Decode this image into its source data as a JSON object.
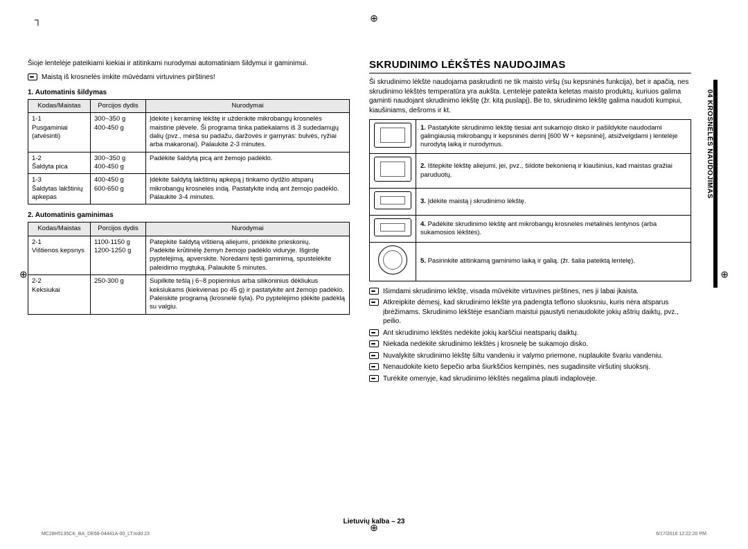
{
  "reg": "⊕",
  "left": {
    "intro": "Šioje lentelėje pateikiami kiekiai ir atitinkami nurodymai automatiniam šildymui ir gaminimui.",
    "note1": "Maistą iš krosnelės imkite mūvėdami virtuvines pirštines!",
    "sec1": "1. Automatinis šildymas",
    "headers": {
      "a": "Kodas/Maistas",
      "b": "Porcijos dydis",
      "c": "Nurodymai"
    },
    "t1": [
      {
        "a": "1-1\nPusgaminiai (atvėsinti)",
        "b": "300~350 g\n400-450 g",
        "c": "Įdėkite į keraminę lėkštę ir uždenkite mikrobangų krosnelės maistine plėvele. Ši programa tinka patiekalams iš 3 sudedamųjų dalių (pvz., mėsa su padažu, daržovės ir garnyras: bulvės, ryžiai arba makaronai). Palaukite 2-3 minutes."
      },
      {
        "a": "1-2\nŠaldyta pica",
        "b": "300~350 g\n400-450 g",
        "c": "Padėkite šaldytą picą ant žemojo padėklo."
      },
      {
        "a": "1-3\nŠaldytas lakštinių apkepas",
        "b": "400-450 g\n600-650 g",
        "c": "Įdėkite šaldytą lakštinių apkepą į tinkamo dydžio atsparų mikrobangų krosnelės indą. Pastatykite indą ant žemojo padėklo. Palaukite 3-4 minutes."
      }
    ],
    "sec2": "2. Automatinis gaminimas",
    "t2": [
      {
        "a": "2-1\nVištienos kepsnys",
        "b": "1100-1150 g\n1200-1250 g",
        "c": "Patepkite šaldytą vištieną aliejumi, pridėkite prieskonių.\nPadėkite krūtinėlę žemyn žemojo padėklo viduryje. Išgirdę pyptelėjimą, apverskite. Norėdami tęsti gaminimą, spustelėkite paleidimo mygtuką. Palaukite 5 minutes."
      },
      {
        "a": "2-2\nKeksiukai",
        "b": "250-300 g",
        "c": "Supilkite tešlą į 6~8 popierinius arba silikoninius dėkliukus keksiukams (kiekvienas po 45 g) ir pastatykite ant žemojo padėklo. Paleiskite programą (krosnelė šyla). Po pyptelėjimo įdėkite padėklą su valgiu."
      }
    ]
  },
  "right": {
    "title": "SKRUDINIMO LĖKŠTĖS NAUDOJIMAS",
    "intro": "Ši skrudinimo lėkštė naudojama paskrudinti ne tik maisto viršų (su kepsninės funkcija), bet ir apačią, nes skrudinimo lėkštės temperatūra yra aukšta. Lentelėje pateikta keletas maisto produktų, kuriuos galima gaminti naudojant skrudinimo lėkštę (žr. kitą puslapį). Be to, skrudinimo lėkštę galima naudoti kumpiui, kiaušiniams, dešroms ir kt.",
    "steps": [
      "Pastatykite skrudinimo lėkštę tiesiai ant sukamojo disko ir pašildykite naudodami galingiausią mikrobangų ir kepsninės derinį [600 W + kepsninė], atsižvelgdami į lentelėje nurodytą laiką ir nurodymus.",
      "Ištepkite lėkštę aliejumi, jei, pvz., šildote bekonieną ir kiaušinius, kad maistas gražiai paruduotų.",
      "Įdėkite maistą į skrudinimo lėkštę.",
      "Padėkite skrudinimo lėkštę ant mikrobangų krosnelės metalinės lentynos (arba sukamosios lėkštės).",
      "Pasirinkite atitinkamą gaminimo laiką ir galią. (žr. šalia pateiktą lentelę)."
    ],
    "notes": [
      "Išimdami skrudinimo lėkštę, visada mūvėkite virtuvines pirštines, nes ji labai įkaista.",
      "Atkreipkite dėmesį, kad skrudinimo lėkštė yra padengta teflono sluoksniu, kuris nėra atsparus įbrėžimams. Skrudinimo lėkštėje esančiam maistui pjaustyti nenaudokite jokių aštrių daiktų, pvz., peilio.",
      "Ant skrudinimo lėkštės nedėkite jokių karščiui neatsparių daiktų.",
      "Niekada nedėkite skrudinimo lėkštės į krosnelę be sukamojo disko.",
      "Nuvalykite skrudinimo lėkštę šiltu vandeniu ir valymo priemone, nuplaukite švariu vandeniu.",
      "Nenaudokite kieto šepečio arba šiurkščios kempinės, nes sugadinsite viršutinį sluoksnį.",
      "Turėkite omenyje, kad skrudinimo lėkštės negalima plauti indaplovėje."
    ],
    "tab": "04  KROSNELĖS NAUDOJIMAS"
  },
  "footer": {
    "center": "Lietuvių kalba – 23",
    "left": "MC28H5135CK_BA_DE68-04441A-00_LT.indd   23",
    "right": "6/17/2016   12:22:20 PM"
  }
}
